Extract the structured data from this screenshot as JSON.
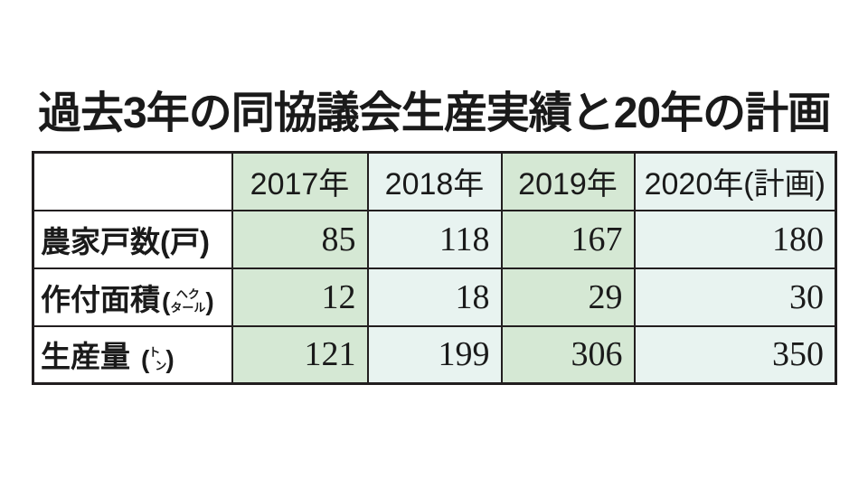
{
  "title": "過去3年の同協議会生産実績と20年の計画",
  "colors": {
    "cell_green": "#d5e8d4",
    "cell_pale": "#e8f3f0",
    "border": "#221e1f",
    "text": "#1a1a1a",
    "background": "#ffffff"
  },
  "table": {
    "columns": [
      {
        "label": "",
        "tone": "white"
      },
      {
        "label": "2017年",
        "tone": "green"
      },
      {
        "label": "2018年",
        "tone": "pale"
      },
      {
        "label": "2019年",
        "tone": "green"
      },
      {
        "label": "2020年(計画)",
        "tone": "pale"
      }
    ],
    "rows": [
      {
        "label": "農家戸数(戸)",
        "values": [
          "85",
          "118",
          "167",
          "180"
        ]
      },
      {
        "label": "作付面積",
        "unit_open": "(",
        "unit_top": "ヘク",
        "unit_bottom": "タール",
        "unit_close": ")",
        "values": [
          "12",
          "18",
          "29",
          "30"
        ]
      },
      {
        "label": "生産量",
        "unit_open": "(",
        "unit_top": "ト",
        "unit_bottom": "ン",
        "unit_close": ")",
        "values": [
          "121",
          "199",
          "306",
          "350"
        ]
      }
    ]
  },
  "chart_data": {
    "type": "table",
    "title": "過去3年の同協議会生産実績と20年の計画",
    "categories": [
      "2017年",
      "2018年",
      "2019年",
      "2020年(計画)"
    ],
    "series": [
      {
        "name": "農家戸数(戸)",
        "values": [
          85,
          118,
          167,
          180
        ]
      },
      {
        "name": "作付面積(ヘクタール)",
        "values": [
          12,
          18,
          29,
          30
        ]
      },
      {
        "name": "生産量(トン)",
        "values": [
          121,
          199,
          306,
          350
        ]
      }
    ]
  }
}
